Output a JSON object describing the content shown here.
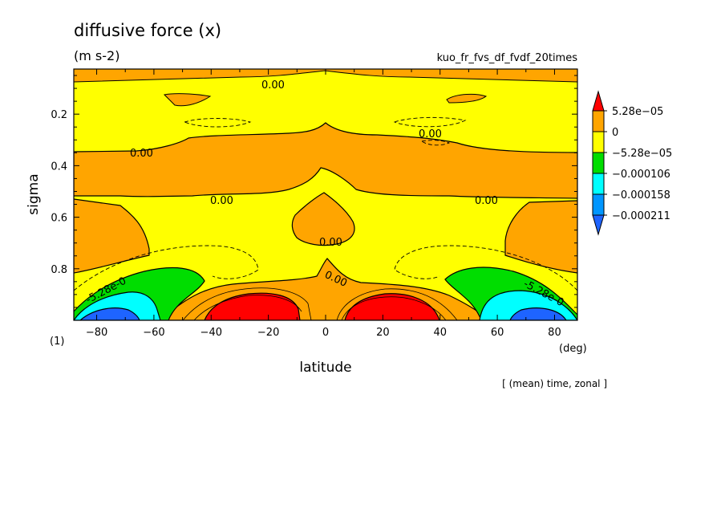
{
  "header": {
    "title": "diffusive force (x)",
    "units": "(m s-2)",
    "run_name": "kuo_fr_fvs_df_fvdf_20times",
    "panel_index": "(1)",
    "footer_note": "[ (mean) time, zonal ]"
  },
  "chart_data": {
    "type": "heatmap",
    "xlabel": "latitude",
    "x_unit": "(deg)",
    "ylabel": "sigma",
    "xlim": [
      -88,
      88
    ],
    "ylim": [
      1.0,
      0.025
    ],
    "y_inverted": true,
    "xticks": [
      -80,
      -60,
      -40,
      -20,
      0,
      20,
      40,
      60,
      80
    ],
    "xtick_labels": [
      "-80",
      "-60",
      "-40",
      "-20",
      "0",
      "20",
      "40",
      "60",
      "80"
    ],
    "yticks": [
      0.2,
      0.4,
      0.6,
      0.8
    ],
    "ytick_labels": [
      "0.2",
      "0.4",
      "0.6",
      "0.8"
    ],
    "contour_labels": [
      "0.00",
      "0.00",
      "0.00",
      "0.00",
      "0.00",
      "0.00",
      "0.00",
      "-5.28e-0",
      "-5.28e-0"
    ],
    "colorbar": {
      "labels": [
        "5.28e-05",
        "0",
        "-5.28e-05",
        "-0.000106",
        "-0.000158",
        "-0.000211"
      ],
      "levels": [
        5.28e-05,
        0,
        -5.28e-05,
        -0.000106,
        -0.000158,
        -0.000211
      ],
      "colors": [
        "#ff0000",
        "#ffa500",
        "#ffff00",
        "#00dd00",
        "#00ffff",
        "#0096ff",
        "#1e64ff"
      ],
      "top_arrow_color": "#ff0000",
      "bottom_arrow_color": "#1e64ff"
    },
    "bands": [
      {
        "range": "> 5.28e-05",
        "color": "#ff0000",
        "regions": [
          "lat -40..-5, sigma 0.87..1.0",
          "lat 5..40, sigma 0.87..1.0"
        ]
      },
      {
        "range": "0 .. 5.28e-05",
        "color": "#ffa500",
        "regions": [
          "sigma 0.33..0.55 all latitudes",
          "upper boundary sigma < 0.08",
          "equatorial tongue sigma 0.4..0.85",
          "low levels lat -45..45"
        ]
      },
      {
        "range": "-5.28e-05 .. 0",
        "color": "#ffff00",
        "regions": [
          "sigma 0.08..0.33",
          "sigma 0.55..0.85"
        ]
      },
      {
        "range": "-0.000106 .. -5.28e-05",
        "color": "#00dd00",
        "regions": [
          "lat -80..-55, sigma 0.83..1.0",
          "lat 55..80, sigma 0.83..1.0"
        ]
      },
      {
        "range": "-0.000158 .. -0.000106",
        "color": "#00ffff",
        "regions": [
          "lat -88..-60, sigma 0.88..1.0",
          "lat 60..88, sigma 0.88..1.0"
        ]
      },
      {
        "range": "< -0.000158",
        "color": "#1e64ff",
        "regions": [
          "lat -85..-70, sigma 0.95..1.0",
          "lat 70..85, sigma 0.95..1.0"
        ]
      }
    ]
  }
}
